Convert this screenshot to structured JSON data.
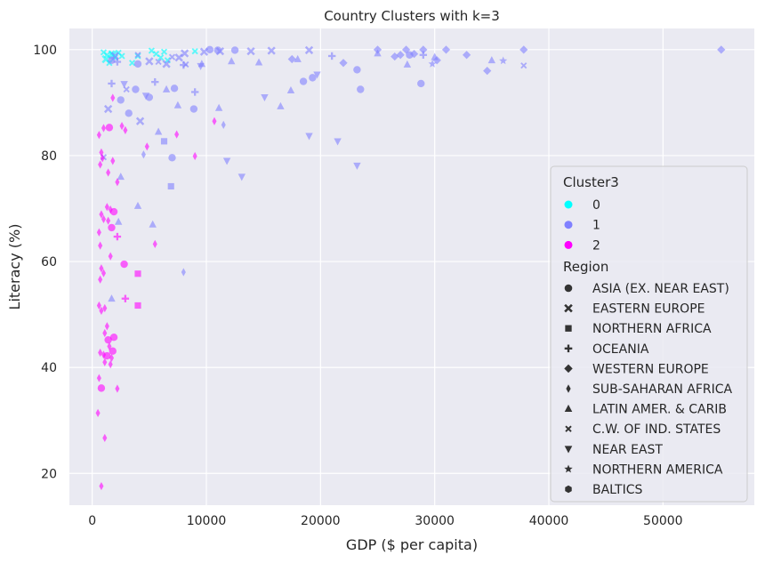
{
  "chart_data": {
    "type": "scatter",
    "title": "Country Clusters with k=3",
    "xlabel": "GDP ($ per capita)",
    "ylabel": "Literacy (%)",
    "xlim": [
      -2000,
      58000
    ],
    "ylim": [
      14,
      104
    ],
    "xticks": [
      0,
      10000,
      20000,
      30000,
      40000,
      50000
    ],
    "yticks": [
      20,
      40,
      60,
      80,
      100
    ],
    "grid": true,
    "legend_placement": "right",
    "legend": {
      "hue_title": "Cluster3",
      "hue_entries": [
        {
          "label": "0",
          "color": "#00ffff"
        },
        {
          "label": "1",
          "color": "#8080ff"
        },
        {
          "label": "2",
          "color": "#ff00ff"
        }
      ],
      "style_title": "Region",
      "style_entries": [
        {
          "label": "ASIA (EX. NEAR EAST)",
          "marker": "circle"
        },
        {
          "label": "EASTERN EUROPE",
          "marker": "x"
        },
        {
          "label": "NORTHERN AFRICA",
          "marker": "square"
        },
        {
          "label": "OCEANIA",
          "marker": "plus"
        },
        {
          "label": "WESTERN EUROPE",
          "marker": "diamond"
        },
        {
          "label": "SUB-SAHARAN AFRICA",
          "marker": "thin-diamond"
        },
        {
          "label": "LATIN AMER. & CARIB",
          "marker": "triangle-up"
        },
        {
          "label": "C.W. OF IND. STATES",
          "marker": "small-x"
        },
        {
          "label": "NEAR EAST",
          "marker": "triangle-down"
        },
        {
          "label": "NORTHERN AMERICA",
          "marker": "star"
        },
        {
          "label": "BALTICS",
          "marker": "hexagon"
        }
      ]
    },
    "series": [
      {
        "cluster": "0",
        "points": [
          [
            1000,
            99.5,
            "C.W. OF IND. STATES"
          ],
          [
            1300,
            99,
            "C.W. OF IND. STATES"
          ],
          [
            1500,
            97.5,
            "C.W. OF IND. STATES"
          ],
          [
            1700,
            99.3,
            "C.W. OF IND. STATES"
          ],
          [
            2000,
            98.5,
            "C.W. OF IND. STATES"
          ],
          [
            2300,
            99.4,
            "C.W. OF IND. STATES"
          ],
          [
            2600,
            98.8,
            "C.W. OF IND. STATES"
          ],
          [
            3500,
            97.5,
            "C.W. OF IND. STATES"
          ],
          [
            4000,
            98.8,
            "C.W. OF IND. STATES"
          ],
          [
            5200,
            99.8,
            "C.W. OF IND. STATES"
          ],
          [
            5600,
            99.2,
            "C.W. OF IND. STATES"
          ],
          [
            6000,
            98.5,
            "C.W. OF IND. STATES"
          ],
          [
            6300,
            99.6,
            "C.W. OF IND. STATES"
          ],
          [
            6600,
            98.0,
            "C.W. OF IND. STATES"
          ],
          [
            9000,
            99.7,
            "C.W. OF IND. STATES"
          ],
          [
            1800,
            99.0,
            "EASTERN EUROPE"
          ],
          [
            1200,
            98.2,
            "EASTERN EUROPE"
          ]
        ]
      },
      {
        "cluster": "1",
        "points": [
          [
            1700,
            98,
            "ASIA (EX. NEAR EAST)"
          ],
          [
            2500,
            90.5,
            "ASIA (EX. NEAR EAST)"
          ],
          [
            3200,
            88,
            "ASIA (EX. NEAR EAST)"
          ],
          [
            3800,
            92.5,
            "ASIA (EX. NEAR EAST)"
          ],
          [
            4000,
            97.3,
            "ASIA (EX. NEAR EAST)"
          ],
          [
            5000,
            91,
            "ASIA (EX. NEAR EAST)"
          ],
          [
            7200,
            92.7,
            "ASIA (EX. NEAR EAST)"
          ],
          [
            7000,
            79.6,
            "ASIA (EX. NEAR EAST)"
          ],
          [
            8900,
            88.8,
            "ASIA (EX. NEAR EAST)"
          ],
          [
            10300,
            100,
            "ASIA (EX. NEAR EAST)"
          ],
          [
            11000,
            99.9,
            "ASIA (EX. NEAR EAST)"
          ],
          [
            12500,
            99.9,
            "ASIA (EX. NEAR EAST)"
          ],
          [
            18500,
            94,
            "ASIA (EX. NEAR EAST)"
          ],
          [
            19300,
            94.7,
            "ASIA (EX. NEAR EAST)"
          ],
          [
            23200,
            96.2,
            "ASIA (EX. NEAR EAST)"
          ],
          [
            23500,
            92.5,
            "ASIA (EX. NEAR EAST)"
          ],
          [
            27800,
            99,
            "ASIA (EX. NEAR EAST)"
          ],
          [
            28800,
            93.6,
            "ASIA (EX. NEAR EAST)"
          ],
          [
            4200,
            86.5,
            "EASTERN EUROPE"
          ],
          [
            5000,
            97.8,
            "EASTERN EUROPE"
          ],
          [
            6500,
            97.3,
            "EASTERN EUROPE"
          ],
          [
            7600,
            98.5,
            "EASTERN EUROPE"
          ],
          [
            8100,
            99.3,
            "EASTERN EUROPE"
          ],
          [
            9800,
            99.6,
            "EASTERN EUROPE"
          ],
          [
            11200,
            99.7,
            "EASTERN EUROPE"
          ],
          [
            13900,
            99.7,
            "EASTERN EUROPE"
          ],
          [
            15700,
            99.8,
            "EASTERN EUROPE"
          ],
          [
            19000,
            99.9,
            "EASTERN EUROPE"
          ],
          [
            1400,
            88.8,
            "EASTERN EUROPE"
          ],
          [
            2000,
            98.8,
            "EASTERN EUROPE"
          ],
          [
            6300,
            82.7,
            "NORTHERN AFRICA"
          ],
          [
            6900,
            74.2,
            "NORTHERN AFRICA"
          ],
          [
            1700,
            93.6,
            "OCEANIA"
          ],
          [
            2200,
            97.7,
            "OCEANIA"
          ],
          [
            5500,
            93.9,
            "OCEANIA"
          ],
          [
            8000,
            97.1,
            "OCEANIA"
          ],
          [
            9000,
            92.0,
            "OCEANIA"
          ],
          [
            21000,
            98.8,
            "OCEANIA"
          ],
          [
            29000,
            99.0,
            "OCEANIA"
          ],
          [
            17500,
            98.2,
            "WESTERN EUROPE"
          ],
          [
            22000,
            97.5,
            "WESTERN EUROPE"
          ],
          [
            25000,
            100,
            "WESTERN EUROPE"
          ],
          [
            26500,
            98.7,
            "WESTERN EUROPE"
          ],
          [
            27000,
            99,
            "WESTERN EUROPE"
          ],
          [
            27500,
            100,
            "WESTERN EUROPE"
          ],
          [
            28200,
            99.2,
            "WESTERN EUROPE"
          ],
          [
            29000,
            100,
            "WESTERN EUROPE"
          ],
          [
            30200,
            98.0,
            "WESTERN EUROPE"
          ],
          [
            31000,
            100,
            "WESTERN EUROPE"
          ],
          [
            32800,
            99,
            "WESTERN EUROPE"
          ],
          [
            34600,
            96.0,
            "WESTERN EUROPE"
          ],
          [
            37800,
            100,
            "WESTERN EUROPE"
          ],
          [
            55100,
            100,
            "WESTERN EUROPE"
          ],
          [
            4500,
            80.2,
            "SUB-SAHARAN AFRICA"
          ],
          [
            8000,
            58,
            "SUB-SAHARAN AFRICA"
          ],
          [
            11500,
            85.8,
            "SUB-SAHARAN AFRICA"
          ],
          [
            2500,
            76,
            "LATIN AMER. & CARIB"
          ],
          [
            4000,
            70.5,
            "LATIN AMER. & CARIB"
          ],
          [
            5300,
            67,
            "LATIN AMER. & CARIB"
          ],
          [
            5800,
            84.5,
            "LATIN AMER. & CARIB"
          ],
          [
            6500,
            92.5,
            "LATIN AMER. & CARIB"
          ],
          [
            7500,
            89.5,
            "LATIN AMER. & CARIB"
          ],
          [
            9600,
            97.3,
            "LATIN AMER. & CARIB"
          ],
          [
            11100,
            89,
            "LATIN AMER. & CARIB"
          ],
          [
            12200,
            97.8,
            "LATIN AMER. & CARIB"
          ],
          [
            14600,
            97.6,
            "LATIN AMER. & CARIB"
          ],
          [
            16500,
            89.3,
            "LATIN AMER. & CARIB"
          ],
          [
            17400,
            92.3,
            "LATIN AMER. & CARIB"
          ],
          [
            18000,
            98.2,
            "LATIN AMER. & CARIB"
          ],
          [
            25000,
            99.3,
            "LATIN AMER. & CARIB"
          ],
          [
            27600,
            97.2,
            "LATIN AMER. & CARIB"
          ],
          [
            30000,
            98.6,
            "LATIN AMER. & CARIB"
          ],
          [
            35000,
            98.0,
            "LATIN AMER. & CARIB"
          ],
          [
            2300,
            67.5,
            "LATIN AMER. & CARIB"
          ],
          [
            1700,
            53,
            "LATIN AMER. & CARIB"
          ],
          [
            3000,
            92.5,
            "C.W. OF IND. STATES"
          ],
          [
            4000,
            99.0,
            "C.W. OF IND. STATES"
          ],
          [
            5800,
            97.7,
            "C.W. OF IND. STATES"
          ],
          [
            7000,
            98.6,
            "C.W. OF IND. STATES"
          ],
          [
            8200,
            97.2,
            "C.W. OF IND. STATES"
          ],
          [
            1000,
            79.7,
            "C.W. OF IND. STATES"
          ],
          [
            37800,
            97.0,
            "C.W. OF IND. STATES"
          ],
          [
            11800,
            79,
            "NEAR EAST"
          ],
          [
            13100,
            76,
            "NEAR EAST"
          ],
          [
            15100,
            91,
            "NEAR EAST"
          ],
          [
            19000,
            83.7,
            "NEAR EAST"
          ],
          [
            21500,
            82.7,
            "NEAR EAST"
          ],
          [
            23200,
            78.1,
            "NEAR EAST"
          ],
          [
            19700,
            95.3,
            "NEAR EAST"
          ],
          [
            4700,
            91.3,
            "NEAR EAST"
          ],
          [
            2800,
            93.5,
            "NEAR EAST"
          ],
          [
            9500,
            96.9,
            "NEAR EAST"
          ],
          [
            36000,
            97.9,
            "NORTHERN AMERICA"
          ],
          [
            29800,
            97.3,
            "NORTHERN AMERICA"
          ]
        ]
      },
      {
        "cluster": "2",
        "points": [
          [
            1500,
            85.3,
            "ASIA (EX. NEAR EAST)"
          ],
          [
            1700,
            66.4,
            "ASIA (EX. NEAR EAST)"
          ],
          [
            1900,
            69.4,
            "ASIA (EX. NEAR EAST)"
          ],
          [
            2800,
            59.5,
            "ASIA (EX. NEAR EAST)"
          ],
          [
            1900,
            45.7,
            "ASIA (EX. NEAR EAST)"
          ],
          [
            1400,
            45.2,
            "ASIA (EX. NEAR EAST)"
          ],
          [
            1800,
            43.1,
            "ASIA (EX. NEAR EAST)"
          ],
          [
            1300,
            42.2,
            "ASIA (EX. NEAR EAST)"
          ],
          [
            800,
            36.1,
            "ASIA (EX. NEAR EAST)"
          ],
          [
            4000,
            51.7,
            "NORTHERN AFRICA"
          ],
          [
            4000,
            57.7,
            "NORTHERN AFRICA"
          ],
          [
            2200,
            64.7,
            "OCEANIA"
          ],
          [
            2900,
            53.0,
            "OCEANIA"
          ],
          [
            1000,
            85.2,
            "SUB-SAHARAN AFRICA"
          ],
          [
            1800,
            90.9,
            "SUB-SAHARAN AFRICA"
          ],
          [
            2600,
            85.6,
            "SUB-SAHARAN AFRICA"
          ],
          [
            2900,
            84.8,
            "SUB-SAHARAN AFRICA"
          ],
          [
            4800,
            81.7,
            "SUB-SAHARAN AFRICA"
          ],
          [
            7400,
            84,
            "SUB-SAHARAN AFRICA"
          ],
          [
            9000,
            79.9,
            "SUB-SAHARAN AFRICA"
          ],
          [
            10700,
            86.5,
            "SUB-SAHARAN AFRICA"
          ],
          [
            600,
            83.9,
            "SUB-SAHARAN AFRICA"
          ],
          [
            800,
            80.6,
            "SUB-SAHARAN AFRICA"
          ],
          [
            900,
            79.5,
            "SUB-SAHARAN AFRICA"
          ],
          [
            700,
            78.3,
            "SUB-SAHARAN AFRICA"
          ],
          [
            1400,
            76.8,
            "SUB-SAHARAN AFRICA"
          ],
          [
            1800,
            79.0,
            "SUB-SAHARAN AFRICA"
          ],
          [
            2200,
            75.0,
            "SUB-SAHARAN AFRICA"
          ],
          [
            1300,
            70.3,
            "SUB-SAHARAN AFRICA"
          ],
          [
            1600,
            69.8,
            "SUB-SAHARAN AFRICA"
          ],
          [
            800,
            68.9,
            "SUB-SAHARAN AFRICA"
          ],
          [
            1000,
            68.0,
            "SUB-SAHARAN AFRICA"
          ],
          [
            1400,
            67.7,
            "SUB-SAHARAN AFRICA"
          ],
          [
            600,
            65.5,
            "SUB-SAHARAN AFRICA"
          ],
          [
            700,
            63.0,
            "SUB-SAHARAN AFRICA"
          ],
          [
            5500,
            63.3,
            "SUB-SAHARAN AFRICA"
          ],
          [
            1600,
            61.0,
            "SUB-SAHARAN AFRICA"
          ],
          [
            800,
            58.7,
            "SUB-SAHARAN AFRICA"
          ],
          [
            1000,
            57.8,
            "SUB-SAHARAN AFRICA"
          ],
          [
            700,
            56.6,
            "SUB-SAHARAN AFRICA"
          ],
          [
            600,
            51.7,
            "SUB-SAHARAN AFRICA"
          ],
          [
            800,
            50.7,
            "SUB-SAHARAN AFRICA"
          ],
          [
            1100,
            51.2,
            "SUB-SAHARAN AFRICA"
          ],
          [
            1300,
            47.8,
            "SUB-SAHARAN AFRICA"
          ],
          [
            1100,
            46.5,
            "SUB-SAHARAN AFRICA"
          ],
          [
            1500,
            44.0,
            "SUB-SAHARAN AFRICA"
          ],
          [
            700,
            42.8,
            "SUB-SAHARAN AFRICA"
          ],
          [
            1000,
            42.4,
            "SUB-SAHARAN AFRICA"
          ],
          [
            1700,
            41.8,
            "SUB-SAHARAN AFRICA"
          ],
          [
            1100,
            41.0,
            "SUB-SAHARAN AFRICA"
          ],
          [
            1600,
            40.6,
            "SUB-SAHARAN AFRICA"
          ],
          [
            600,
            38.0,
            "SUB-SAHARAN AFRICA"
          ],
          [
            2200,
            36.0,
            "SUB-SAHARAN AFRICA"
          ],
          [
            500,
            31.4,
            "SUB-SAHARAN AFRICA"
          ],
          [
            1100,
            26.7,
            "SUB-SAHARAN AFRICA"
          ],
          [
            800,
            17.6,
            "SUB-SAHARAN AFRICA"
          ]
        ]
      }
    ]
  }
}
